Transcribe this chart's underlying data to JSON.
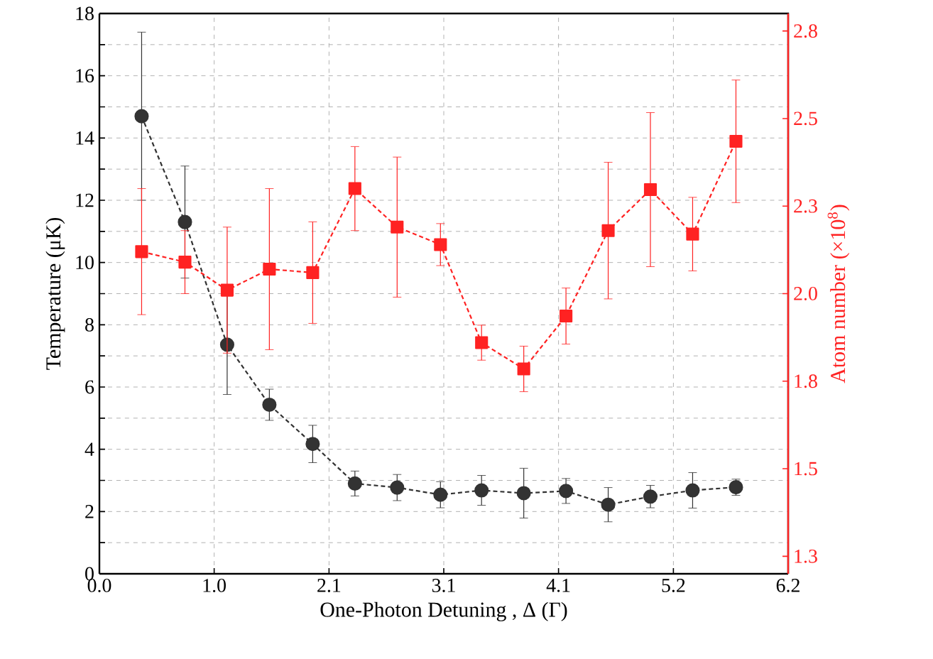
{
  "chart_data": {
    "type": "line",
    "xlabel": "One-Photon Detuning , Δ (Γ)",
    "ylabel": "Temperature (μK)",
    "y2label": "Atom number (×10$^{8}$)",
    "x": [
      0.38,
      0.77,
      1.15,
      1.53,
      1.92,
      2.3,
      2.68,
      3.07,
      3.44,
      3.82,
      4.2,
      4.58,
      4.96,
      5.34,
      5.73
    ],
    "xlim": [
      0,
      6.2
    ],
    "xticks": [
      {
        "value": 0,
        "label": "0.0"
      },
      {
        "value": 1.033,
        "label": "1.0"
      },
      {
        "value": 2.067,
        "label": "2.1"
      },
      3.1,
      {
        "value": 4.133,
        "label": "4.1"
      },
      {
        "value": 5.167,
        "label": "5.2"
      },
      6.2
    ],
    "ylim": [
      0,
      18
    ],
    "yticks": [
      0,
      {
        "value": 1,
        "label": null
      },
      2,
      {
        "value": 3,
        "label": null
      },
      4,
      {
        "value": 5,
        "label": null
      },
      6,
      {
        "value": 7,
        "label": null
      },
      8,
      {
        "value": 9,
        "label": null
      },
      10,
      {
        "value": 11,
        "label": null
      },
      12,
      {
        "value": 13,
        "label": null
      },
      14,
      {
        "value": 15,
        "label": null
      },
      16,
      {
        "value": 17,
        "label": null
      },
      18
    ],
    "y2lim": [
      1.2,
      2.8
    ],
    "y2ticks": [
      {
        "value": 1.25,
        "label": "1.3"
      },
      1.5,
      {
        "value": 1.75,
        "label": "1.8"
      },
      {
        "value": 2,
        "label": "2.0"
      },
      {
        "value": 2.25,
        "label": "2.3"
      },
      2.5,
      {
        "value": 2.75,
        "label": "2.8"
      }
    ],
    "grid": true,
    "line_style": "dashed",
    "series": [
      {
        "color": "#333333",
        "marker": "circle",
        "values": [
          14.7,
          11.3,
          7.36,
          5.43,
          4.17,
          2.9,
          2.77,
          2.54,
          2.68,
          2.59,
          2.66,
          2.22,
          2.48,
          2.68,
          2.78
        ],
        "errors": [
          2.7,
          1.8,
          1.6,
          0.5,
          0.6,
          0.4,
          0.42,
          0.42,
          0.48,
          0.8,
          0.4,
          0.55,
          0.36,
          0.57,
          0.26
        ]
      },
      {
        "color": "#ff2222",
        "marker": "square",
        "axis": "y2",
        "values": [
          2.12,
          2.09,
          2.01,
          2.07,
          2.06,
          2.3,
          2.19,
          2.14,
          1.86,
          1.785,
          1.936,
          2.18,
          2.297,
          2.17,
          2.435
        ],
        "errors": [
          0.18,
          0.09,
          0.18,
          0.23,
          0.145,
          0.12,
          0.2,
          0.06,
          0.05,
          0.065,
          0.08,
          0.195,
          0.22,
          0.105,
          0.175
        ]
      }
    ]
  }
}
